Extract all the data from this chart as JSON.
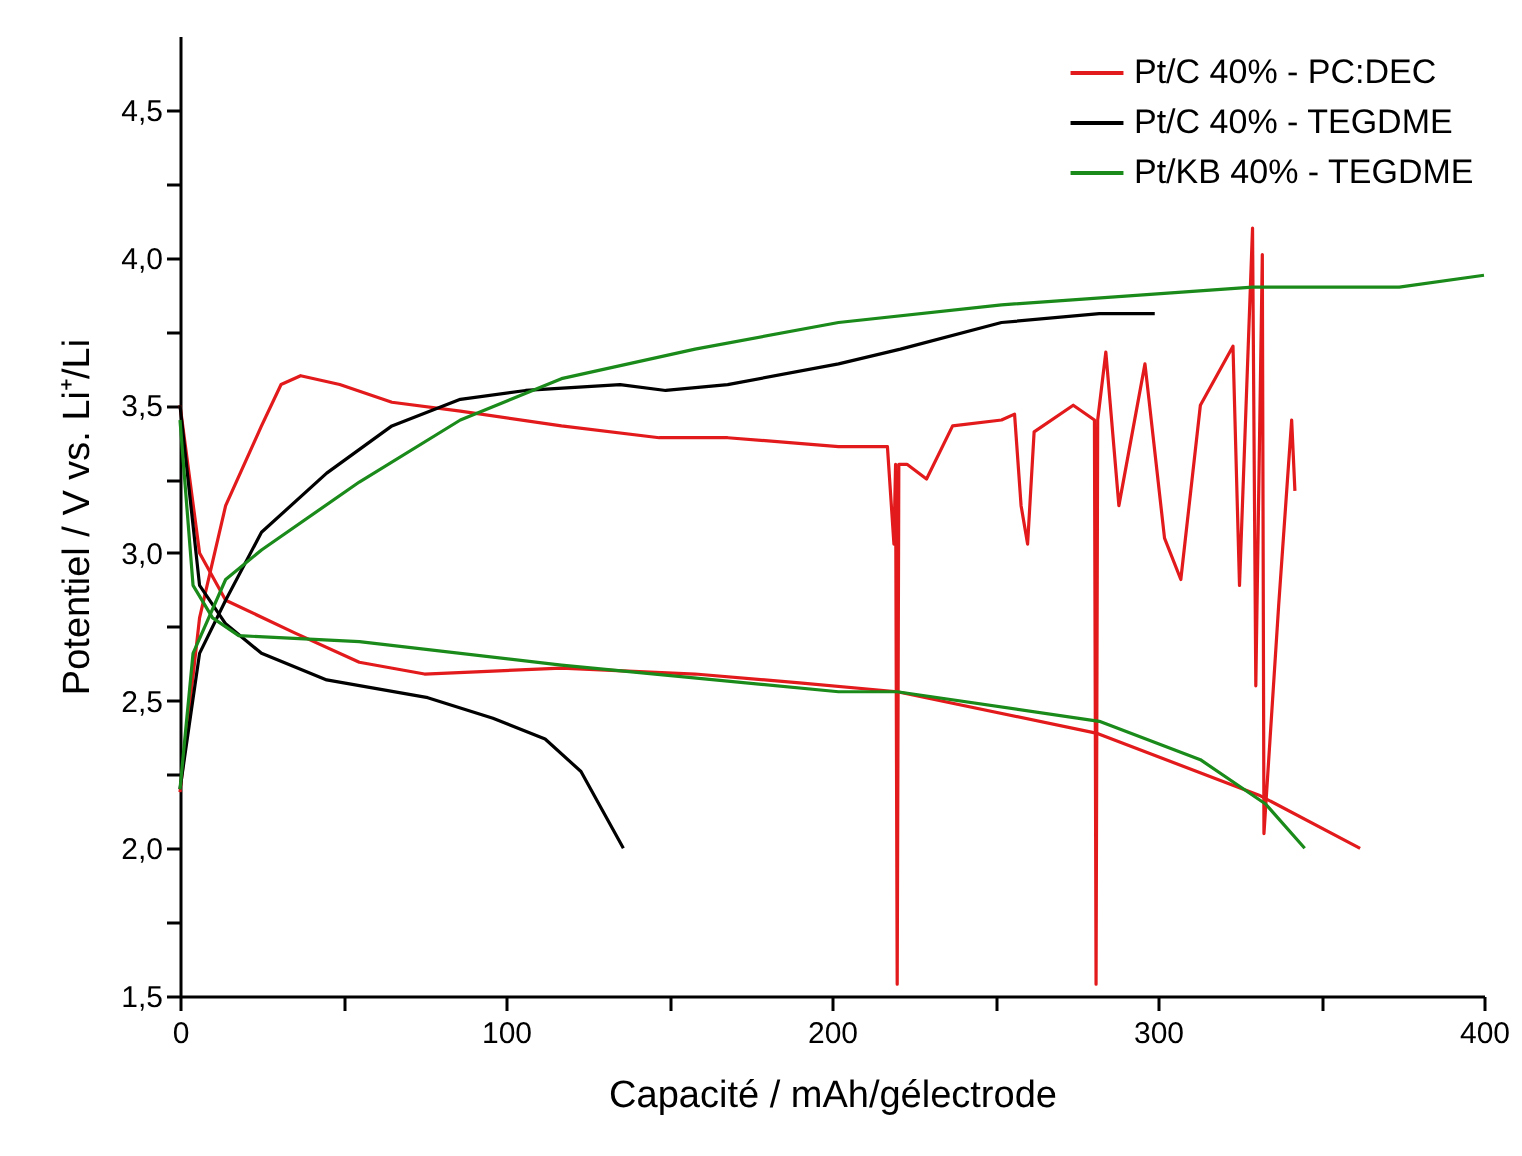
{
  "chart_data": {
    "type": "line",
    "xlabel": "Capacité / mAh/gélectrode",
    "ylabel": "Potentiel / V vs. Li⁺/Li",
    "xlim": [
      0,
      400
    ],
    "xticks": [
      0,
      {
        "value": 50,
        "label": null
      },
      100,
      {
        "value": 150,
        "label": null
      },
      200,
      {
        "value": 250,
        "label": null
      },
      300,
      {
        "value": 350,
        "label": null
      },
      400
    ],
    "ylim": [
      1.5,
      4.75
    ],
    "yticks": [
      {
        "value": 1.5,
        "label": "1,5"
      },
      {
        "value": 1.75,
        "label": null
      },
      {
        "value": 2.0,
        "label": "2,0"
      },
      {
        "value": 2.25,
        "label": null
      },
      {
        "value": 2.5,
        "label": "2,5"
      },
      {
        "value": 2.75,
        "label": null
      },
      {
        "value": 3.0,
        "label": "3,0"
      },
      {
        "value": 3.25,
        "label": null
      },
      {
        "value": 3.5,
        "label": "3,5"
      },
      {
        "value": 3.75,
        "label": null
      },
      {
        "value": 4.0,
        "label": "4,0"
      },
      {
        "value": 4.25,
        "label": null
      },
      {
        "value": 4.5,
        "label": "4,5"
      }
    ],
    "grid": false,
    "legend": "top right",
    "marker": "none",
    "line_style": "solid",
    "series": [
      {
        "name": "Pt/C 40% - PC:DEC",
        "color": "#e31a1c",
        "x": [
          0,
          6,
          14,
          35,
          55,
          75,
          96,
          117,
          158,
          190,
          220,
          281,
          331,
          362
        ],
        "values": [
          3.5,
          3.0,
          2.84,
          2.73,
          2.63,
          2.59,
          2.6,
          2.61,
          2.59,
          2.56,
          2.53,
          2.39,
          2.18,
          2.0
        ]
      },
      {
        "color": "#e31a1c",
        "x": [
          0,
          6,
          14,
          25,
          31,
          37,
          49,
          65,
          86,
          117,
          147,
          168,
          202,
          217,
          219,
          219.5,
          220,
          220.5,
          223,
          229,
          237,
          252,
          256,
          258,
          260,
          262,
          274,
          280.5,
          281,
          281.5,
          284,
          288,
          296,
          302,
          307,
          313,
          323,
          325,
          329,
          330,
          332,
          332.5,
          337,
          341,
          342
        ],
        "values": [
          2.19,
          2.78,
          3.16,
          3.43,
          3.57,
          3.6,
          3.57,
          3.51,
          3.48,
          3.43,
          3.39,
          3.39,
          3.36,
          3.36,
          3.03,
          3.3,
          1.54,
          3.3,
          3.3,
          3.25,
          3.43,
          3.45,
          3.47,
          3.16,
          3.03,
          3.41,
          3.5,
          3.45,
          1.54,
          3.45,
          3.68,
          3.16,
          3.64,
          3.05,
          2.91,
          3.5,
          3.7,
          2.89,
          4.1,
          2.55,
          4.01,
          2.05,
          2.82,
          3.45,
          3.21
        ]
      },
      {
        "name": "Pt/C 40% - TEGDME",
        "color": "#000000",
        "x": [
          0,
          6,
          14,
          25,
          45,
          76,
          96,
          112,
          123,
          131,
          136
        ],
        "values": [
          3.5,
          2.89,
          2.76,
          2.66,
          2.57,
          2.51,
          2.44,
          2.37,
          2.26,
          2.1,
          2.0
        ]
      },
      {
        "color": "#000000",
        "x": [
          0,
          6,
          14,
          25,
          45,
          65,
          86,
          106,
          135,
          149,
          168,
          202,
          221,
          252,
          282,
          299
        ],
        "values": [
          2.2,
          2.66,
          2.84,
          3.07,
          3.27,
          3.43,
          3.52,
          3.55,
          3.57,
          3.55,
          3.57,
          3.64,
          3.69,
          3.78,
          3.81,
          3.81
        ]
      },
      {
        "name": "Pt/KB 40% - TEGDME",
        "color": "#1a8a1a",
        "x": [
          0,
          4,
          10,
          18,
          55,
          117,
          202,
          220,
          282,
          313,
          333,
          345
        ],
        "values": [
          3.45,
          2.89,
          2.78,
          2.72,
          2.7,
          2.62,
          2.53,
          2.53,
          2.43,
          2.3,
          2.15,
          2.0
        ]
      },
      {
        "color": "#1a8a1a",
        "x": [
          0,
          4,
          14,
          25,
          55,
          86,
          117,
          158,
          202,
          252,
          329,
          374,
          400
        ],
        "values": [
          2.2,
          2.66,
          2.91,
          3.01,
          3.24,
          3.45,
          3.59,
          3.69,
          3.78,
          3.84,
          3.9,
          3.9,
          3.94
        ]
      }
    ]
  }
}
